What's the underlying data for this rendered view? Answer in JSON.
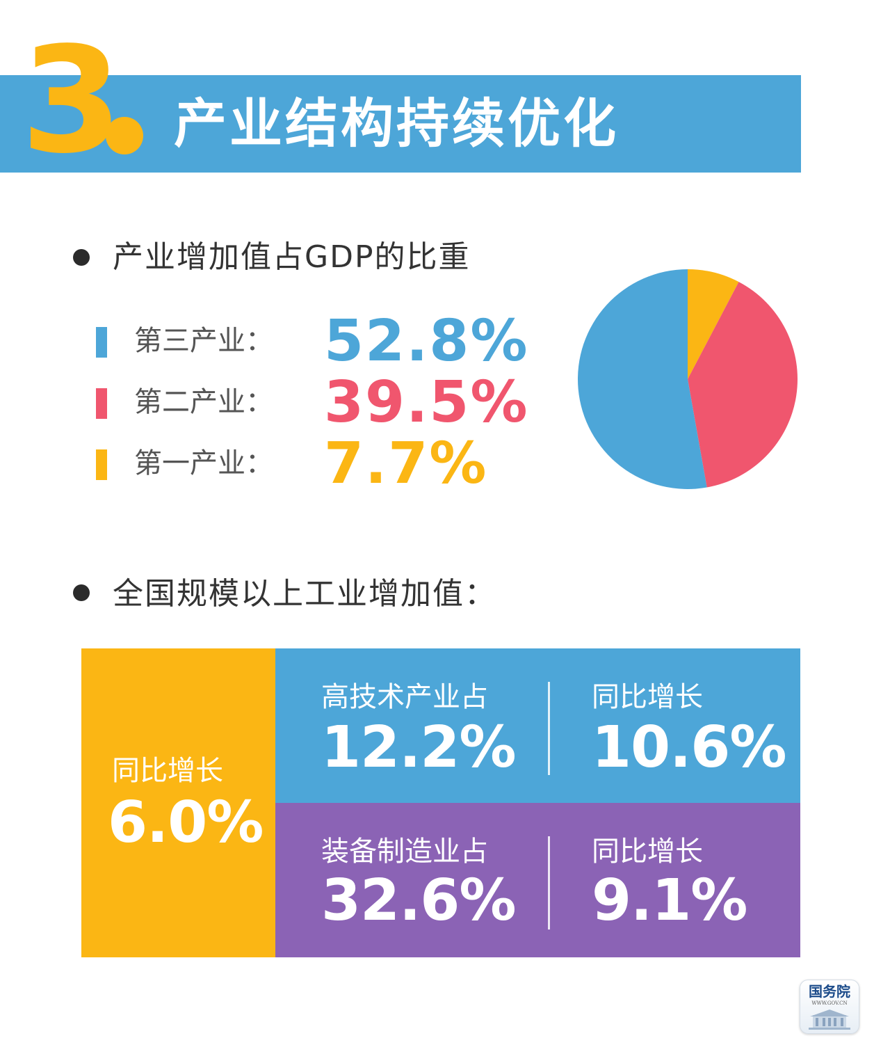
{
  "header": {
    "number": "3",
    "title": "产业结构持续优化"
  },
  "section1": {
    "heading": "产业增加值占GDP的比重"
  },
  "section2": {
    "heading": "全国规模以上工业增加值："
  },
  "colors": {
    "blue": "#4da6d8",
    "red": "#f0566e",
    "yellow": "#fbb614",
    "purple": "#8b63b5"
  },
  "chart_data": {
    "type": "pie",
    "title": "产业增加值占GDP的比重",
    "categories": [
      "第三产业",
      "第二产业",
      "第一产业"
    ],
    "values": [
      52.8,
      39.5,
      7.7
    ],
    "value_labels": [
      "52.8%",
      "39.5%",
      "7.7%"
    ],
    "legend_labels": [
      "第三产业：",
      "第二产业：",
      "第一产业："
    ],
    "colors": [
      "#4da6d8",
      "#f0566e",
      "#fbb614"
    ],
    "legend_placement": "left"
  },
  "industrial": {
    "total": {
      "label": "同比增长",
      "value": "6.0%"
    },
    "high_tech": {
      "share_label": "高技术产业占",
      "share_value": "12.2%",
      "growth_label": "同比增长",
      "growth_value": "10.6%"
    },
    "equipment": {
      "share_label": "装备制造业占",
      "share_value": "32.6%",
      "growth_label": "同比增长",
      "growth_value": "9.1%"
    }
  },
  "logo": {
    "name": "国务院",
    "url": "WWW.GOV.CN"
  }
}
